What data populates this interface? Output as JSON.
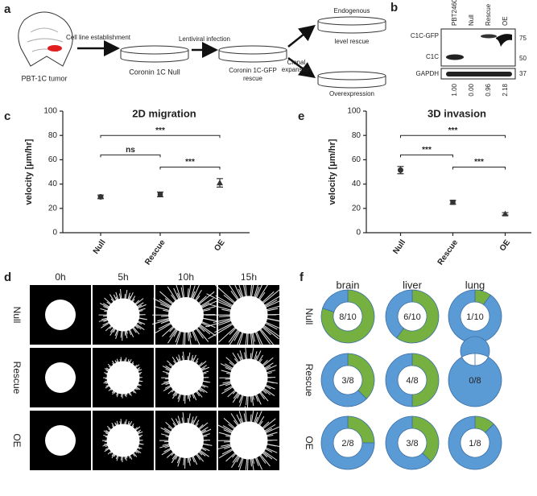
{
  "panel_labels": [
    "a",
    "b",
    "c",
    "d",
    "e",
    "f"
  ],
  "schematic": {
    "tumor": "PBT-1C tumor",
    "step1": "Cell line establishment",
    "null_line": "Coronin 1C Null",
    "step2": "Lentiviral infection",
    "rescue_line": [
      "Coronin 1C-GFP",
      "rescue"
    ],
    "step3": [
      "Clonal",
      "expansion"
    ],
    "endogenous": [
      "Endogenous",
      "level rescue"
    ],
    "overexpression": "Overexpression"
  },
  "blot": {
    "lanes": [
      "PBT2460",
      "Null",
      "Rescue",
      "OE"
    ],
    "bands": [
      "C1C-GFP",
      "C1C",
      "GAPDH"
    ],
    "markers": [
      "75",
      "50",
      "37"
    ],
    "quantification": [
      "1.00",
      "0.00",
      "0.96",
      "2.18"
    ]
  },
  "imaging": {
    "timepoints": [
      "0h",
      "5h",
      "10h",
      "15h"
    ],
    "rows": [
      "Null",
      "Rescue",
      "OE"
    ]
  },
  "metastasis": {
    "columns": [
      "brain",
      "liver",
      "lung"
    ],
    "rows": [
      "Null",
      "Rescue",
      "OE"
    ]
  },
  "chart_data": [
    {
      "type": "scatter",
      "title": "2D migration",
      "y_label": "velocity [μm/hr]",
      "categories": [
        "Null",
        "Rescue",
        "OE"
      ],
      "values": [
        29.5,
        31.5,
        41
      ],
      "errors": [
        1.5,
        2,
        3.5
      ],
      "markers": [
        "circle",
        "square",
        "triangle"
      ],
      "color": "#333333",
      "ylim": [
        0,
        100
      ],
      "yticks": [
        0,
        20,
        40,
        60,
        80,
        100
      ],
      "brackets": [
        {
          "between": [
            "Null",
            "OE"
          ],
          "label": "***"
        },
        {
          "between": [
            "Null",
            "Rescue"
          ],
          "label": "ns"
        },
        {
          "between": [
            "Rescue",
            "OE"
          ],
          "label": "***"
        }
      ]
    },
    {
      "type": "scatter",
      "title": "3D invasion",
      "y_label": "velocity [μm/hr]",
      "categories": [
        "Null",
        "Rescue",
        "OE"
      ],
      "values": [
        51.5,
        25,
        15.5
      ],
      "errors": [
        3,
        1.5,
        1
      ],
      "markers": [
        "circle",
        "square",
        "triangle"
      ],
      "color": "#333333",
      "ylim": [
        0,
        100
      ],
      "yticks": [
        0,
        20,
        40,
        60,
        80,
        100
      ],
      "brackets": [
        {
          "between": [
            "Null",
            "OE"
          ],
          "label": "***"
        },
        {
          "between": [
            "Null",
            "Rescue"
          ],
          "label": "***"
        },
        {
          "between": [
            "Rescue",
            "OE"
          ],
          "label": "***"
        }
      ]
    },
    {
      "type": "pie",
      "label": "8/10",
      "values": [
        8,
        2
      ],
      "colors": [
        "#76b041",
        "#5b9bd5"
      ]
    },
    {
      "type": "pie",
      "label": "6/10",
      "values": [
        6,
        4
      ],
      "colors": [
        "#76b041",
        "#5b9bd5"
      ]
    },
    {
      "type": "pie",
      "label": "1/10",
      "values": [
        1,
        9
      ],
      "colors": [
        "#76b041",
        "#5b9bd5"
      ]
    },
    {
      "type": "pie",
      "label": "3/8",
      "values": [
        3,
        5
      ],
      "colors": [
        "#76b041",
        "#5b9bd5"
      ]
    },
    {
      "type": "pie",
      "label": "4/8",
      "values": [
        4,
        4
      ],
      "colors": [
        "#76b041",
        "#5b9bd5"
      ]
    },
    {
      "type": "pie",
      "label": "0/8",
      "values": [
        0,
        8
      ],
      "colors": [
        "#76b041",
        "#5b9bd5"
      ]
    },
    {
      "type": "pie",
      "label": "2/8",
      "values": [
        2,
        6
      ],
      "colors": [
        "#76b041",
        "#5b9bd5"
      ]
    },
    {
      "type": "pie",
      "label": "3/8",
      "values": [
        3,
        5
      ],
      "colors": [
        "#76b041",
        "#5b9bd5"
      ]
    },
    {
      "type": "pie",
      "label": "1/8",
      "values": [
        1,
        7
      ],
      "colors": [
        "#76b041",
        "#5b9bd5"
      ]
    }
  ]
}
